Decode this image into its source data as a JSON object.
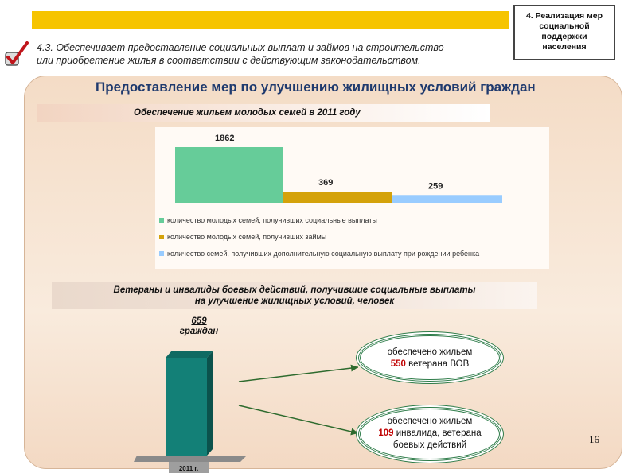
{
  "header": {
    "subtitle_line1": "4.3. Обеспечивает предоставление социальных выплат и займов на строительство",
    "subtitle_line2": "или приобретение жилья в соответствии с действующим законодательством.",
    "section_label_lines": [
      "4. Реализация мер",
      "социальной",
      "поддержки",
      "населения"
    ]
  },
  "main_title": "Предоставление мер по улучшению жилищных условий граждан",
  "chart1_title": "Обеспечение жильем молодых семей в 2011 году",
  "chart2_title_lines": [
    "Ветераны и инвалиды боевых действий, получившие социальные выплаты",
    "на улучшение жилищных условий, человек"
  ],
  "chart_data": [
    {
      "type": "bar",
      "title": "Обеспечение жильем молодых семей в 2011 году",
      "series": [
        {
          "name": "количество молодых семей, получивших социальные выплаты",
          "values": [
            1862
          ],
          "color": "#66cc99"
        },
        {
          "name": "количество молодых семей, получивших займы",
          "values": [
            369
          ],
          "color": "#d4a20a"
        },
        {
          "name": "количество семей, получивших дополнительную социальную выплату при рождении ребенка",
          "values": [
            259
          ],
          "color": "#99ccff"
        }
      ],
      "data_labels": [
        "1862",
        "369",
        "259"
      ],
      "ylim": [
        0,
        1862
      ],
      "legend": "bottom"
    },
    {
      "type": "bar",
      "categories": [
        "2011 г."
      ],
      "values": [
        659
      ],
      "color": "#138077",
      "data_label_lines": [
        "659",
        "граждан"
      ]
    }
  ],
  "breakdown": [
    {
      "line1": "обеспечено жильем",
      "number": "550",
      "rest": " ветерана ВОВ",
      "line3": ""
    },
    {
      "line1": "обеспечено жильем",
      "number": "109",
      "rest": " инвалида, ветерана",
      "line3": "боевых действий"
    }
  ],
  "page_number": "16"
}
